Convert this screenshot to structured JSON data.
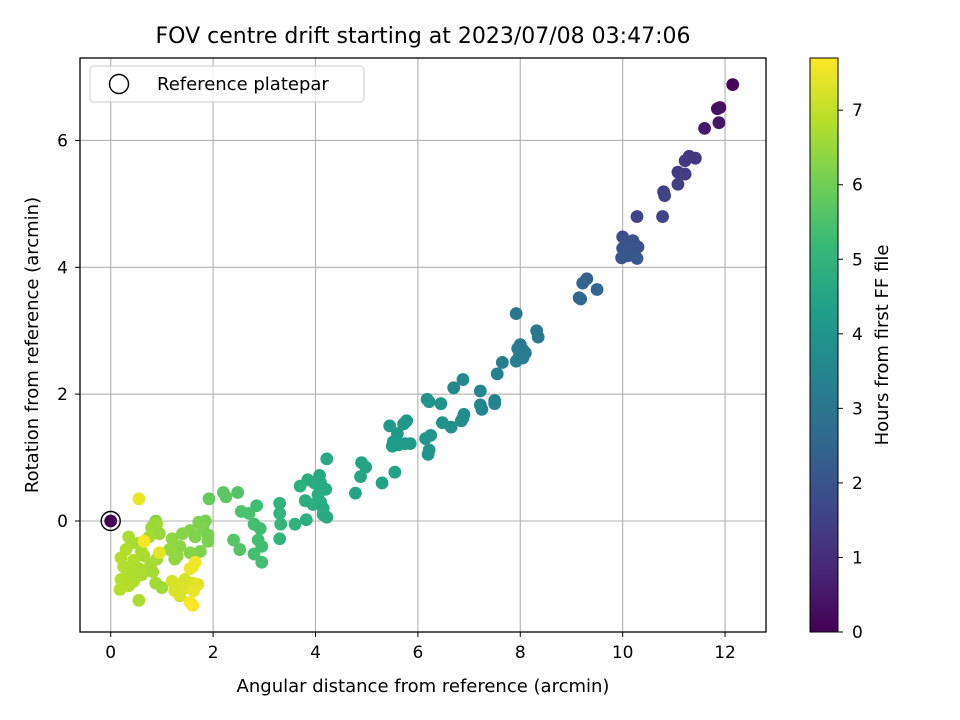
{
  "chart_data": {
    "type": "scatter",
    "title": "FOV centre drift starting at 2023/07/08 03:47:06",
    "xlabel": "Angular distance from reference (arcmin)",
    "ylabel": "Rotation from reference (arcmin)",
    "xlim": [
      -0.6,
      12.8
    ],
    "ylim": [
      -1.75,
      7.3
    ],
    "xticks": [
      0,
      2,
      4,
      6,
      8,
      10,
      12
    ],
    "yticks": [
      0,
      2,
      4,
      6
    ],
    "grid": true,
    "legend": {
      "placement": "top-left",
      "entries": [
        {
          "label": "Reference platepar",
          "marker": "hollow-circle"
        }
      ]
    },
    "reference_point": {
      "x": 0,
      "y": 0
    },
    "colorbar": {
      "label": "Hours from first FF file",
      "range": [
        0,
        7.7
      ],
      "ticks": [
        0,
        1,
        2,
        3,
        4,
        5,
        6,
        7
      ],
      "colormap": "viridis"
    },
    "colormap_stops": [
      "#440154",
      "#482878",
      "#3e4989",
      "#31688e",
      "#26828e",
      "#1f9e89",
      "#35b779",
      "#6ece58",
      "#b5de2b",
      "#fde725"
    ],
    "points": [
      {
        "x": 0.0,
        "y": 0.0,
        "h": 0.0
      },
      {
        "x": 12.15,
        "y": 6.88,
        "h": 0.1
      },
      {
        "x": 11.9,
        "y": 6.52,
        "h": 0.3
      },
      {
        "x": 11.85,
        "y": 6.5,
        "h": 0.35
      },
      {
        "x": 11.88,
        "y": 6.28,
        "h": 0.45
      },
      {
        "x": 11.6,
        "y": 6.19,
        "h": 0.55
      },
      {
        "x": 11.3,
        "y": 5.75,
        "h": 1.2
      },
      {
        "x": 11.42,
        "y": 5.72,
        "h": 1.25
      },
      {
        "x": 11.22,
        "y": 5.68,
        "h": 1.3
      },
      {
        "x": 11.08,
        "y": 5.5,
        "h": 1.35
      },
      {
        "x": 11.22,
        "y": 5.47,
        "h": 1.4
      },
      {
        "x": 11.08,
        "y": 5.31,
        "h": 1.45
      },
      {
        "x": 10.8,
        "y": 5.19,
        "h": 1.5
      },
      {
        "x": 10.82,
        "y": 5.13,
        "h": 1.52
      },
      {
        "x": 10.28,
        "y": 4.8,
        "h": 1.6
      },
      {
        "x": 10.78,
        "y": 4.8,
        "h": 1.62
      },
      {
        "x": 10.0,
        "y": 4.48,
        "h": 1.9
      },
      {
        "x": 10.2,
        "y": 4.42,
        "h": 1.92
      },
      {
        "x": 10.1,
        "y": 4.38,
        "h": 1.95
      },
      {
        "x": 10.25,
        "y": 4.35,
        "h": 1.97
      },
      {
        "x": 10.3,
        "y": 4.32,
        "h": 2.0
      },
      {
        "x": 10.0,
        "y": 4.3,
        "h": 2.02
      },
      {
        "x": 10.15,
        "y": 4.27,
        "h": 2.04
      },
      {
        "x": 10.05,
        "y": 4.22,
        "h": 2.06
      },
      {
        "x": 10.2,
        "y": 4.2,
        "h": 2.08
      },
      {
        "x": 10.1,
        "y": 4.18,
        "h": 2.1
      },
      {
        "x": 9.98,
        "y": 4.15,
        "h": 2.12
      },
      {
        "x": 10.28,
        "y": 4.14,
        "h": 2.14
      },
      {
        "x": 9.3,
        "y": 3.82,
        "h": 2.4
      },
      {
        "x": 9.22,
        "y": 3.75,
        "h": 2.45
      },
      {
        "x": 9.5,
        "y": 3.65,
        "h": 2.5
      },
      {
        "x": 9.15,
        "y": 3.52,
        "h": 2.55
      },
      {
        "x": 9.18,
        "y": 3.5,
        "h": 2.6
      },
      {
        "x": 7.92,
        "y": 3.27,
        "h": 3.0
      },
      {
        "x": 8.32,
        "y": 3.0,
        "h": 3.05
      },
      {
        "x": 8.35,
        "y": 2.9,
        "h": 3.1
      },
      {
        "x": 8.0,
        "y": 2.78,
        "h": 3.15
      },
      {
        "x": 7.95,
        "y": 2.72,
        "h": 3.18
      },
      {
        "x": 8.05,
        "y": 2.7,
        "h": 3.2
      },
      {
        "x": 8.1,
        "y": 2.65,
        "h": 3.22
      },
      {
        "x": 7.98,
        "y": 2.6,
        "h": 3.24
      },
      {
        "x": 8.05,
        "y": 2.57,
        "h": 3.26
      },
      {
        "x": 7.92,
        "y": 2.52,
        "h": 3.28
      },
      {
        "x": 7.65,
        "y": 2.5,
        "h": 3.3
      },
      {
        "x": 7.55,
        "y": 2.32,
        "h": 3.4
      },
      {
        "x": 6.88,
        "y": 2.23,
        "h": 3.6
      },
      {
        "x": 6.7,
        "y": 2.1,
        "h": 3.65
      },
      {
        "x": 7.22,
        "y": 2.05,
        "h": 3.5
      },
      {
        "x": 7.5,
        "y": 1.9,
        "h": 3.45
      },
      {
        "x": 7.5,
        "y": 1.85,
        "h": 3.47
      },
      {
        "x": 7.22,
        "y": 1.83,
        "h": 3.5
      },
      {
        "x": 7.25,
        "y": 1.76,
        "h": 3.52
      },
      {
        "x": 6.9,
        "y": 1.68,
        "h": 3.7
      },
      {
        "x": 6.88,
        "y": 1.62,
        "h": 3.72
      },
      {
        "x": 6.85,
        "y": 1.58,
        "h": 3.74
      },
      {
        "x": 6.18,
        "y": 1.92,
        "h": 3.95
      },
      {
        "x": 6.22,
        "y": 1.88,
        "h": 3.97
      },
      {
        "x": 6.45,
        "y": 1.85,
        "h": 3.9
      },
      {
        "x": 6.48,
        "y": 1.55,
        "h": 3.88
      },
      {
        "x": 6.65,
        "y": 1.48,
        "h": 3.85
      },
      {
        "x": 5.78,
        "y": 1.58,
        "h": 4.05
      },
      {
        "x": 5.72,
        "y": 1.53,
        "h": 4.07
      },
      {
        "x": 5.45,
        "y": 1.5,
        "h": 4.1
      },
      {
        "x": 5.6,
        "y": 1.38,
        "h": 4.12
      },
      {
        "x": 6.25,
        "y": 1.35,
        "h": 4.0
      },
      {
        "x": 6.15,
        "y": 1.3,
        "h": 4.02
      },
      {
        "x": 5.52,
        "y": 1.25,
        "h": 4.15
      },
      {
        "x": 5.75,
        "y": 1.22,
        "h": 4.17
      },
      {
        "x": 5.85,
        "y": 1.22,
        "h": 4.19
      },
      {
        "x": 5.5,
        "y": 1.18,
        "h": 4.21
      },
      {
        "x": 5.62,
        "y": 1.2,
        "h": 4.23
      },
      {
        "x": 6.22,
        "y": 1.12,
        "h": 3.98
      },
      {
        "x": 6.2,
        "y": 1.05,
        "h": 3.99
      },
      {
        "x": 4.22,
        "y": 0.98,
        "h": 4.6
      },
      {
        "x": 4.9,
        "y": 0.92,
        "h": 4.45
      },
      {
        "x": 4.98,
        "y": 0.85,
        "h": 4.47
      },
      {
        "x": 5.55,
        "y": 0.77,
        "h": 4.4
      },
      {
        "x": 4.88,
        "y": 0.7,
        "h": 4.49
      },
      {
        "x": 4.08,
        "y": 0.72,
        "h": 4.65
      },
      {
        "x": 3.85,
        "y": 0.65,
        "h": 4.8
      },
      {
        "x": 3.98,
        "y": 0.6,
        "h": 4.75
      },
      {
        "x": 4.1,
        "y": 0.6,
        "h": 4.7
      },
      {
        "x": 5.3,
        "y": 0.6,
        "h": 4.42
      },
      {
        "x": 3.7,
        "y": 0.55,
        "h": 4.85
      },
      {
        "x": 4.2,
        "y": 0.5,
        "h": 4.68
      },
      {
        "x": 4.78,
        "y": 0.44,
        "h": 4.5
      },
      {
        "x": 4.05,
        "y": 0.42,
        "h": 4.72
      },
      {
        "x": 3.8,
        "y": 0.32,
        "h": 4.82
      },
      {
        "x": 4.1,
        "y": 0.3,
        "h": 4.73
      },
      {
        "x": 3.3,
        "y": 0.28,
        "h": 5.0
      },
      {
        "x": 3.95,
        "y": 0.26,
        "h": 4.78
      },
      {
        "x": 4.15,
        "y": 0.2,
        "h": 4.7
      },
      {
        "x": 3.3,
        "y": 0.12,
        "h": 5.02
      },
      {
        "x": 4.15,
        "y": 0.1,
        "h": 4.71
      },
      {
        "x": 4.22,
        "y": 0.06,
        "h": 4.69
      },
      {
        "x": 3.82,
        "y": 0.02,
        "h": 4.83
      },
      {
        "x": 3.32,
        "y": -0.05,
        "h": 5.04
      },
      {
        "x": 3.6,
        "y": -0.05,
        "h": 4.95
      },
      {
        "x": 3.3,
        "y": -0.28,
        "h": 5.06
      },
      {
        "x": 2.85,
        "y": 0.24,
        "h": 5.3
      },
      {
        "x": 2.8,
        "y": -0.05,
        "h": 5.35
      },
      {
        "x": 2.92,
        "y": -0.12,
        "h": 5.32
      },
      {
        "x": 2.88,
        "y": -0.3,
        "h": 5.36
      },
      {
        "x": 2.95,
        "y": -0.4,
        "h": 5.33
      },
      {
        "x": 2.8,
        "y": -0.52,
        "h": 5.38
      },
      {
        "x": 2.95,
        "y": -0.65,
        "h": 5.34
      },
      {
        "x": 2.55,
        "y": 0.15,
        "h": 5.5
      },
      {
        "x": 2.7,
        "y": 0.12,
        "h": 5.45
      },
      {
        "x": 2.48,
        "y": 0.45,
        "h": 5.6
      },
      {
        "x": 2.2,
        "y": 0.45,
        "h": 5.7
      },
      {
        "x": 2.25,
        "y": 0.38,
        "h": 5.72
      },
      {
        "x": 1.92,
        "y": 0.35,
        "h": 5.85
      },
      {
        "x": 2.4,
        "y": -0.3,
        "h": 5.65
      },
      {
        "x": 2.52,
        "y": -0.45,
        "h": 5.62
      },
      {
        "x": 1.85,
        "y": 0.0,
        "h": 6.1
      },
      {
        "x": 1.72,
        "y": -0.02,
        "h": 6.15
      },
      {
        "x": 1.8,
        "y": -0.12,
        "h": 6.2
      },
      {
        "x": 1.55,
        "y": -0.15,
        "h": 6.25
      },
      {
        "x": 1.9,
        "y": -0.22,
        "h": 6.1
      },
      {
        "x": 1.65,
        "y": -0.25,
        "h": 6.18
      },
      {
        "x": 1.9,
        "y": -0.32,
        "h": 6.12
      },
      {
        "x": 1.4,
        "y": -0.2,
        "h": 6.3
      },
      {
        "x": 1.2,
        "y": -0.28,
        "h": 6.4
      },
      {
        "x": 1.75,
        "y": -0.48,
        "h": 6.2
      },
      {
        "x": 1.55,
        "y": -0.5,
        "h": 6.28
      },
      {
        "x": 1.35,
        "y": -0.4,
        "h": 6.35
      },
      {
        "x": 1.3,
        "y": -0.55,
        "h": 6.38
      },
      {
        "x": 1.15,
        "y": -0.45,
        "h": 6.45
      },
      {
        "x": 1.25,
        "y": -0.6,
        "h": 6.42
      },
      {
        "x": 0.88,
        "y": 0.0,
        "h": 6.3
      },
      {
        "x": 0.9,
        "y": -0.05,
        "h": 6.6
      },
      {
        "x": 0.8,
        "y": -0.1,
        "h": 6.55
      },
      {
        "x": 0.95,
        "y": -0.2,
        "h": 6.5
      },
      {
        "x": 0.75,
        "y": -0.25,
        "h": 6.65
      },
      {
        "x": 0.35,
        "y": -0.25,
        "h": 6.75
      },
      {
        "x": 0.4,
        "y": -0.35,
        "h": 6.7
      },
      {
        "x": 0.55,
        "y": -0.35,
        "h": 6.68
      },
      {
        "x": 0.3,
        "y": -0.45,
        "h": 6.78
      },
      {
        "x": 0.6,
        "y": -0.48,
        "h": 6.72
      },
      {
        "x": 0.65,
        "y": -0.55,
        "h": 6.7
      },
      {
        "x": 0.2,
        "y": -0.58,
        "h": 6.85
      },
      {
        "x": 0.45,
        "y": -0.62,
        "h": 6.8
      },
      {
        "x": 0.9,
        "y": -0.6,
        "h": 6.62
      },
      {
        "x": 0.78,
        "y": -0.68,
        "h": 6.66
      },
      {
        "x": 0.25,
        "y": -0.72,
        "h": 6.82
      },
      {
        "x": 0.55,
        "y": -0.75,
        "h": 6.74
      },
      {
        "x": 0.7,
        "y": -0.78,
        "h": 6.71
      },
      {
        "x": 0.38,
        "y": -0.8,
        "h": 6.76
      },
      {
        "x": 0.82,
        "y": -0.8,
        "h": 6.64
      },
      {
        "x": 0.6,
        "y": -0.85,
        "h": 6.73
      },
      {
        "x": 0.3,
        "y": -0.88,
        "h": 6.79
      },
      {
        "x": 0.2,
        "y": -0.92,
        "h": 6.84
      },
      {
        "x": 0.45,
        "y": -0.95,
        "h": 6.77
      },
      {
        "x": 0.88,
        "y": -0.98,
        "h": 6.63
      },
      {
        "x": 1.0,
        "y": -1.05,
        "h": 6.6
      },
      {
        "x": 0.35,
        "y": -1.02,
        "h": 6.8
      },
      {
        "x": 0.18,
        "y": -1.08,
        "h": 6.86
      },
      {
        "x": 0.55,
        "y": -1.25,
        "h": 6.75
      },
      {
        "x": 0.55,
        "y": 0.35,
        "h": 7.5
      },
      {
        "x": 0.65,
        "y": -0.32,
        "h": 7.6
      },
      {
        "x": 0.95,
        "y": -0.5,
        "h": 7.4
      },
      {
        "x": 1.2,
        "y": -0.95,
        "h": 7.2
      },
      {
        "x": 1.3,
        "y": -1.0,
        "h": 7.25
      },
      {
        "x": 1.45,
        "y": -0.92,
        "h": 7.22
      },
      {
        "x": 1.5,
        "y": -1.05,
        "h": 7.28
      },
      {
        "x": 1.6,
        "y": -0.98,
        "h": 7.3
      },
      {
        "x": 1.25,
        "y": -1.1,
        "h": 7.26
      },
      {
        "x": 1.35,
        "y": -1.18,
        "h": 7.27
      },
      {
        "x": 1.6,
        "y": -0.72,
        "h": 7.5
      },
      {
        "x": 1.65,
        "y": -0.65,
        "h": 7.55
      },
      {
        "x": 1.55,
        "y": -0.75,
        "h": 7.52
      },
      {
        "x": 1.62,
        "y": -1.1,
        "h": 7.45
      },
      {
        "x": 1.55,
        "y": -1.28,
        "h": 7.6
      },
      {
        "x": 1.6,
        "y": -1.33,
        "h": 7.65
      },
      {
        "x": 1.7,
        "y": -1.0,
        "h": 7.4
      }
    ]
  }
}
